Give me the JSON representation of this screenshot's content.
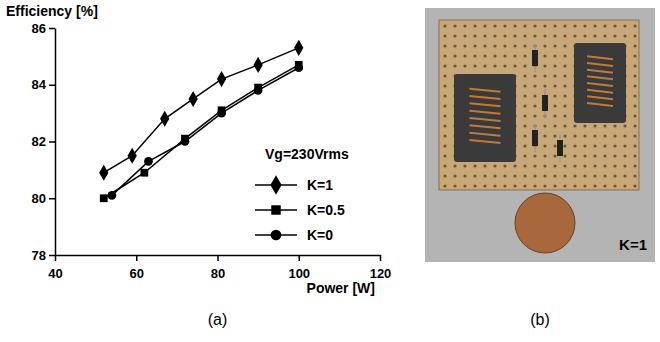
{
  "chart_data": {
    "type": "line",
    "x_label": "Power [W]",
    "y_label": "Efficiency [%]",
    "panel_label": "(a)",
    "annotations": [
      {
        "text": "Vg=230Vrms"
      }
    ],
    "xlim": [
      40,
      120
    ],
    "xticks": [
      40,
      60,
      80,
      100,
      120
    ],
    "ylim": [
      78,
      86
    ],
    "yticks": [
      78,
      80,
      82,
      84,
      86
    ],
    "grid": false,
    "legend": "lower right",
    "series": [
      {
        "name": "K=1",
        "color": "#000000",
        "marker": "diamond",
        "line_style": "solid",
        "x": [
          52,
          59,
          67,
          74,
          81,
          90,
          100
        ],
        "values": [
          80.9,
          81.5,
          82.8,
          83.5,
          84.2,
          84.7,
          85.3
        ]
      },
      {
        "name": "K=0.5",
        "color": "#000000",
        "marker": "square",
        "line_style": "solid",
        "x": [
          52,
          62,
          72,
          81,
          90,
          100
        ],
        "values": [
          80.0,
          80.9,
          82.1,
          83.1,
          83.9,
          84.7
        ]
      },
      {
        "name": "K=0",
        "color": "#000000",
        "marker": "circle",
        "line_style": "solid",
        "x": [
          54,
          63,
          72,
          81,
          90,
          100
        ],
        "values": [
          80.1,
          81.3,
          82.0,
          83.0,
          83.8,
          84.6
        ]
      }
    ]
  },
  "photo": {
    "panel_label": "(b)",
    "caption": "K=1"
  }
}
